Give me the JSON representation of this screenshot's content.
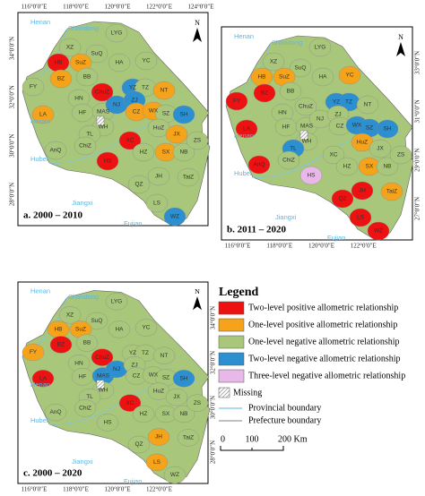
{
  "panels": [
    {
      "caption": "a. 2000 – 2010",
      "north": "N",
      "top_labels": [
        "116°0′0″E",
        "118°0′0″E",
        "120°0′0″E",
        "122°0′0″E",
        "124°0′0″E"
      ],
      "left_labels": [
        "34°0′0″N",
        "32°0′0″N",
        "30°0′0″N",
        "28°0′0″N"
      ],
      "places": [
        "Henan",
        "Shandong",
        "Henan",
        "Hubei",
        "Jiangxi",
        "Fujian"
      ],
      "regions": [
        {
          "label": "LYG",
          "color": "#a8c77a"
        },
        {
          "label": "XZ",
          "color": "#a8c77a"
        },
        {
          "label": "SuQ",
          "color": "#a8c77a"
        },
        {
          "label": "HB",
          "color": "#ee1111"
        },
        {
          "label": "SuZ",
          "color": "#f5a31a"
        },
        {
          "label": "BB",
          "color": "#a8c77a"
        },
        {
          "label": "HA",
          "color": "#a8c77a"
        },
        {
          "label": "YC",
          "color": "#a8c77a"
        },
        {
          "label": "FY",
          "color": "#a8c77a"
        },
        {
          "label": "BZ",
          "color": "#f5a31a"
        },
        {
          "label": "ChuZ",
          "color": "#ee1111"
        },
        {
          "label": "YZ",
          "color": "#2b8fd0"
        },
        {
          "label": "TZ",
          "color": "#a8c77a"
        },
        {
          "label": "NT",
          "color": "#f5a31a"
        },
        {
          "label": "HN",
          "color": "#a8c77a"
        },
        {
          "label": "LA",
          "color": "#f5a31a"
        },
        {
          "label": "HF",
          "color": "#a8c77a"
        },
        {
          "label": "MAS",
          "color": "#a8c77a"
        },
        {
          "label": "NJ",
          "color": "#2b8fd0"
        },
        {
          "label": "ZJ",
          "color": "#2b8fd0"
        },
        {
          "label": "CZ",
          "color": "#f5a31a"
        },
        {
          "label": "WX",
          "color": "#f5a31a"
        },
        {
          "label": "SZ",
          "color": "#a8c77a"
        },
        {
          "label": "SH",
          "color": "#2b8fd0"
        },
        {
          "label": "WH",
          "color": "#a8c77a"
        },
        {
          "label": "TL",
          "color": "#a8c77a"
        },
        {
          "label": "XC",
          "color": "#ee1111"
        },
        {
          "label": "HuZ",
          "color": "#a8c77a"
        },
        {
          "label": "JX",
          "color": "#f5a31a"
        },
        {
          "label": "AnQ",
          "color": "#a8c77a"
        },
        {
          "label": "ChiZ",
          "color": "#a8c77a"
        },
        {
          "label": "HS",
          "color": "#ee1111"
        },
        {
          "label": "HZ",
          "color": "#a8c77a"
        },
        {
          "label": "SX",
          "color": "#f5a31a"
        },
        {
          "label": "NB",
          "color": "#a8c77a"
        },
        {
          "label": "ZS",
          "color": "#a8c77a"
        },
        {
          "label": "QZ",
          "color": "#a8c77a"
        },
        {
          "label": "JH",
          "color": "#a8c77a"
        },
        {
          "label": "TaiZ",
          "color": "#a8c77a"
        },
        {
          "label": "LS",
          "color": "#a8c77a"
        },
        {
          "label": "WZ",
          "color": "#2b8fd0"
        }
      ]
    },
    {
      "caption": "b. 2011 – 2020",
      "north": "N",
      "right_labels": [
        "33°0′0″N",
        "31°0′0″N",
        "29°0′0″N",
        "27°0′0″N"
      ],
      "bottom_labels": [
        "116°0′0″E",
        "118°0′0″E",
        "120°0′0″E",
        "122°0′0″E"
      ],
      "places": [
        "Henan",
        "Shandong",
        "Henan",
        "Hubei",
        "Jiangxi",
        "Fujian"
      ],
      "regions": [
        {
          "label": "LYG",
          "color": "#a8c77a"
        },
        {
          "label": "XZ",
          "color": "#a8c77a"
        },
        {
          "label": "SuQ",
          "color": "#a8c77a"
        },
        {
          "label": "HB",
          "color": "#f5a31a"
        },
        {
          "label": "SuZ",
          "color": "#f5a31a"
        },
        {
          "label": "BB",
          "color": "#a8c77a"
        },
        {
          "label": "HA",
          "color": "#a8c77a"
        },
        {
          "label": "YC",
          "color": "#f5a31a"
        },
        {
          "label": "FY",
          "color": "#ee1111"
        },
        {
          "label": "BZ",
          "color": "#ee1111"
        },
        {
          "label": "ChuZ",
          "color": "#a8c77a"
        },
        {
          "label": "YZ",
          "color": "#2b8fd0"
        },
        {
          "label": "TZ",
          "color": "#2b8fd0"
        },
        {
          "label": "NT",
          "color": "#a8c77a"
        },
        {
          "label": "HN",
          "color": "#a8c77a"
        },
        {
          "label": "LA",
          "color": "#ee1111"
        },
        {
          "label": "HF",
          "color": "#a8c77a"
        },
        {
          "label": "MAS",
          "color": "#a8c77a"
        },
        {
          "label": "NJ",
          "color": "#a8c77a"
        },
        {
          "label": "ZJ",
          "color": "#a8c77a"
        },
        {
          "label": "CZ",
          "color": "#a8c77a"
        },
        {
          "label": "WX",
          "color": "#2b8fd0"
        },
        {
          "label": "SZ",
          "color": "#2b8fd0"
        },
        {
          "label": "SH",
          "color": "#2b8fd0"
        },
        {
          "label": "WH",
          "color": "#a8c77a"
        },
        {
          "label": "TL",
          "color": "#2b8fd0"
        },
        {
          "label": "XC",
          "color": "#a8c77a"
        },
        {
          "label": "HuZ",
          "color": "#f5a31a"
        },
        {
          "label": "JX",
          "color": "#a8c77a"
        },
        {
          "label": "AnQ",
          "color": "#ee1111"
        },
        {
          "label": "ChiZ",
          "color": "#a8c77a"
        },
        {
          "label": "HS",
          "color": "#e8b8e8"
        },
        {
          "label": "HZ",
          "color": "#a8c77a"
        },
        {
          "label": "SX",
          "color": "#f5a31a"
        },
        {
          "label": "NB",
          "color": "#a8c77a"
        },
        {
          "label": "ZS",
          "color": "#a8c77a"
        },
        {
          "label": "QZ",
          "color": "#ee1111"
        },
        {
          "label": "JH",
          "color": "#ee1111"
        },
        {
          "label": "TaiZ",
          "color": "#f5a31a"
        },
        {
          "label": "LS",
          "color": "#ee1111"
        },
        {
          "label": "WZ",
          "color": "#ee1111"
        }
      ]
    },
    {
      "caption": "c. 2000 – 2020",
      "north": "N",
      "right_labels": [
        "34°0′0″N",
        "32°0′0″N",
        "30°0′0″N",
        "28°0′0″N"
      ],
      "bottom_labels": [
        "116°0′0″E",
        "118°0′0″E",
        "120°0′0″E",
        "122°0′0″E"
      ],
      "places": [
        "Henan",
        "Shandong",
        "Henan",
        "Hubei",
        "Jiangxi",
        "Fujian"
      ],
      "regions": [
        {
          "label": "LYG",
          "color": "#a8c77a"
        },
        {
          "label": "XZ",
          "color": "#a8c77a"
        },
        {
          "label": "SuQ",
          "color": "#a8c77a"
        },
        {
          "label": "HB",
          "color": "#f5a31a"
        },
        {
          "label": "SuZ",
          "color": "#f5a31a"
        },
        {
          "label": "BB",
          "color": "#a8c77a"
        },
        {
          "label": "HA",
          "color": "#a8c77a"
        },
        {
          "label": "YC",
          "color": "#a8c77a"
        },
        {
          "label": "FY",
          "color": "#f5a31a"
        },
        {
          "label": "BZ",
          "color": "#ee1111"
        },
        {
          "label": "ChuZ",
          "color": "#ee1111"
        },
        {
          "label": "YZ",
          "color": "#a8c77a"
        },
        {
          "label": "TZ",
          "color": "#a8c77a"
        },
        {
          "label": "NT",
          "color": "#a8c77a"
        },
        {
          "label": "HN",
          "color": "#a8c77a"
        },
        {
          "label": "LA",
          "color": "#ee1111"
        },
        {
          "label": "HF",
          "color": "#a8c77a"
        },
        {
          "label": "MAS",
          "color": "#2b8fd0"
        },
        {
          "label": "NJ",
          "color": "#2b8fd0"
        },
        {
          "label": "ZJ",
          "color": "#a8c77a"
        },
        {
          "label": "CZ",
          "color": "#a8c77a"
        },
        {
          "label": "WX",
          "color": "#a8c77a"
        },
        {
          "label": "SZ",
          "color": "#a8c77a"
        },
        {
          "label": "SH",
          "color": "#2b8fd0"
        },
        {
          "label": "WH",
          "color": "#a8c77a"
        },
        {
          "label": "TL",
          "color": "#a8c77a"
        },
        {
          "label": "XC",
          "color": "#ee1111"
        },
        {
          "label": "HuZ",
          "color": "#a8c77a"
        },
        {
          "label": "JX",
          "color": "#a8c77a"
        },
        {
          "label": "AnQ",
          "color": "#a8c77a"
        },
        {
          "label": "ChiZ",
          "color": "#a8c77a"
        },
        {
          "label": "HS",
          "color": "#a8c77a"
        },
        {
          "label": "HZ",
          "color": "#a8c77a"
        },
        {
          "label": "SX",
          "color": "#a8c77a"
        },
        {
          "label": "NB",
          "color": "#a8c77a"
        },
        {
          "label": "ZS",
          "color": "#a8c77a"
        },
        {
          "label": "QZ",
          "color": "#a8c77a"
        },
        {
          "label": "JH",
          "color": "#f5a31a"
        },
        {
          "label": "TaiZ",
          "color": "#a8c77a"
        },
        {
          "label": "LS",
          "color": "#f5a31a"
        },
        {
          "label": "WZ",
          "color": "#a8c77a"
        }
      ]
    }
  ],
  "legend": {
    "title": "Legend",
    "items": [
      {
        "label": "Two-level positive allometric relationship",
        "color": "#ee1111"
      },
      {
        "label": "One-level positive allometric relationship",
        "color": "#f5a31a"
      },
      {
        "label": "One-level negative allometric relationship",
        "color": "#a8c77a"
      },
      {
        "label": "Two-level negative allometric relationship",
        "color": "#2b8fd0"
      },
      {
        "label": "Three-level negative allometric relationship",
        "color": "#e8b8e8"
      }
    ],
    "missing": "Missing",
    "lines": [
      {
        "label": "Provincial boundary",
        "color": "#7cc4ea"
      },
      {
        "label": "Prefecture boundary",
        "color": "#9a9a9a"
      }
    ]
  },
  "scale_bar": [
    "0",
    "100",
    "200 Km"
  ]
}
